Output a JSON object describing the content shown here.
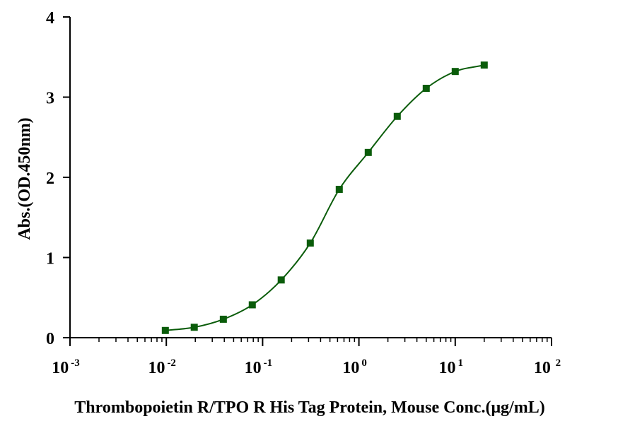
{
  "chart_data": {
    "type": "scatter",
    "xlabel": "Thrombopoietin R/TPO R His Tag Protein, Mouse Conc.(μg/mL)",
    "ylabel": "Abs.(OD.450nm)",
    "x_scale": "log10",
    "xlim": [
      0.001,
      100
    ],
    "ylim": [
      0,
      4
    ],
    "x_ticks": [
      {
        "base": "10",
        "exp": "-3",
        "value": 0.001
      },
      {
        "base": "10",
        "exp": "-2",
        "value": 0.01
      },
      {
        "base": "10",
        "exp": "-1",
        "value": 0.1
      },
      {
        "base": "10",
        "exp": "0",
        "value": 1
      },
      {
        "base": "10",
        "exp": "1",
        "value": 10
      },
      {
        "base": "10",
        "exp": " 2",
        "value": 100
      }
    ],
    "y_ticks": [
      "0",
      "1",
      "2",
      "3",
      "4"
    ],
    "grid": false,
    "color": "#0a5c0a",
    "series": [
      {
        "x": [
          0.00977,
          0.0195,
          0.0391,
          0.0781,
          0.156,
          0.3125,
          0.625,
          1.25,
          2.5,
          5,
          10,
          20
        ],
        "y": [
          0.09,
          0.13,
          0.23,
          0.41,
          0.72,
          1.18,
          1.85,
          2.31,
          2.76,
          3.11,
          3.32,
          3.4
        ]
      }
    ]
  }
}
